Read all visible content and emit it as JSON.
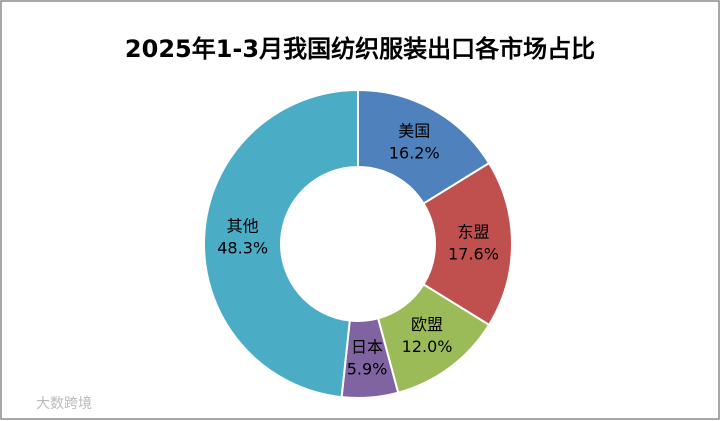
{
  "chart_data": {
    "type": "donut",
    "title": "2025年1-3月我国纺织服装出口各市场占比",
    "categories": [
      "美国",
      "东盟",
      "欧盟",
      "日本",
      "其他"
    ],
    "values": [
      16.2,
      17.6,
      12.0,
      5.9,
      48.3
    ],
    "value_labels": [
      "16.2%",
      "17.6%",
      "12.0%",
      "5.9%",
      "48.3%"
    ],
    "colors": [
      "#4f81bd",
      "#c0504d",
      "#9bbb59",
      "#8064a2",
      "#4bacc6"
    ],
    "watermark": "大数跨境"
  }
}
